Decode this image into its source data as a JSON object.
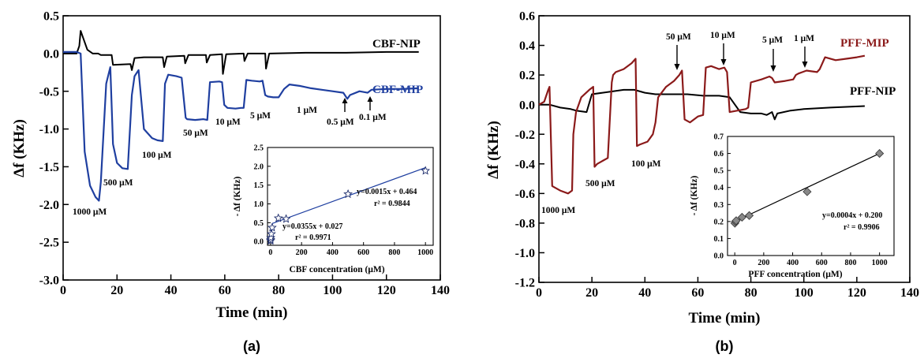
{
  "figure": {
    "panel_a_caption": "(a)",
    "panel_b_caption": "(b)"
  },
  "colors": {
    "axis": "#000000",
    "cbf_mip": "#1f3fa0",
    "cbf_nip": "#000000",
    "pff_mip": "#8b1a1a",
    "pff_nip": "#000000",
    "inset_fit_a": "#1f3fa0",
    "inset_fit_b": "#000000",
    "inset_marker_b": "#888888"
  },
  "chart_data": [
    {
      "type": "line",
      "panel": "a",
      "xlabel": "Time (min)",
      "ylabel": "Δf (KHz)",
      "xlim": [
        0,
        140
      ],
      "ylim": [
        -3.0,
        0.5
      ],
      "xticks": [
        0,
        20,
        40,
        60,
        80,
        100,
        120,
        140
      ],
      "yticks": [
        0.5,
        0.0,
        -0.5,
        -1.0,
        -1.5,
        -2.0,
        -2.5,
        -3.0
      ],
      "ytick_labels": [
        "0.5",
        "0.0",
        "-0.5",
        "-1.0",
        "-1.5",
        "-2.0",
        "-2.5",
        "-3.0"
      ],
      "series": [
        {
          "name": "CBF-MIP",
          "x": [
            0,
            5,
            6.5,
            8,
            10,
            12,
            13.3,
            14,
            16,
            17.5,
            18.5,
            20,
            22,
            24,
            25.5,
            26.5,
            28,
            30,
            33,
            35,
            37,
            37.8,
            39,
            42,
            44,
            45.5,
            46,
            49,
            52,
            53.5,
            54.5,
            58,
            59,
            59.8,
            61,
            64,
            66,
            67,
            68,
            70,
            73,
            74,
            75,
            76,
            78,
            80,
            82,
            84,
            88,
            92,
            96,
            100,
            104,
            105.5,
            106.5,
            110,
            113,
            114.5,
            120,
            126,
            132
          ],
          "y": [
            0.02,
            0.02,
            0.0,
            -1.3,
            -1.75,
            -1.9,
            -1.95,
            -1.7,
            -0.4,
            -0.18,
            -1.2,
            -1.45,
            -1.52,
            -1.53,
            -0.55,
            -0.3,
            -0.22,
            -1.0,
            -1.12,
            -1.15,
            -1.16,
            -0.4,
            -0.28,
            -0.3,
            -0.32,
            -0.85,
            -0.87,
            -0.88,
            -0.87,
            -0.88,
            -0.38,
            -0.37,
            -0.38,
            -0.68,
            -0.72,
            -0.73,
            -0.72,
            -0.72,
            -0.35,
            -0.36,
            -0.37,
            -0.36,
            -0.55,
            -0.57,
            -0.58,
            -0.58,
            -0.47,
            -0.41,
            -0.43,
            -0.46,
            -0.48,
            -0.5,
            -0.52,
            -0.6,
            -0.55,
            -0.5,
            -0.52,
            -0.48,
            -0.47,
            -0.47,
            -0.46
          ]
        },
        {
          "name": "CBF-NIP",
          "x": [
            0,
            5,
            6,
            6.5,
            7.5,
            9,
            11,
            13,
            14,
            18,
            18.5,
            25,
            25.5,
            26.5,
            30,
            37,
            37.5,
            38.5,
            45,
            45.3,
            46.5,
            53,
            53.3,
            54.5,
            59,
            59.3,
            60.5,
            67,
            67.3,
            68.5,
            75,
            75.3,
            76.5,
            90,
            105,
            120,
            132
          ],
          "y": [
            0.0,
            0.0,
            0.1,
            0.3,
            0.2,
            0.05,
            0.0,
            0.0,
            -0.02,
            -0.02,
            -0.15,
            -0.14,
            -0.22,
            -0.06,
            -0.05,
            -0.05,
            -0.18,
            -0.04,
            -0.03,
            -0.13,
            -0.02,
            -0.02,
            -0.12,
            -0.02,
            -0.01,
            -0.27,
            -0.01,
            0.0,
            -0.1,
            0.0,
            0.0,
            -0.2,
            0.0,
            0.01,
            0.01,
            0.02,
            0.02
          ]
        }
      ],
      "labels": {
        "nip": "CBF-NIP",
        "mip": "CBF-MIP",
        "c1000": "1000 μM",
        "c500": "500 μM",
        "c100": "100 μM",
        "c50": "50 μM",
        "c10": "10 μM",
        "c5": "5 μM",
        "c1": "1 μM",
        "c05": "0.5 μM",
        "c01": "0.1 μM"
      },
      "inset": {
        "type": "scatter",
        "xlabel": "CBF concentration (μM)",
        "ylabel": "- Δf (KHz)",
        "xlim": [
          -20,
          1050
        ],
        "ylim": [
          -0.1,
          2.5
        ],
        "xticks": [
          0,
          200,
          400,
          600,
          800,
          1000
        ],
        "yticks": [
          0.0,
          0.5,
          1.0,
          1.5,
          2.0,
          2.5
        ],
        "ytick_labels": [
          "0.0",
          "0.5",
          "1.0",
          "1.5",
          "2.0",
          "2.5"
        ],
        "points_x": [
          0.1,
          0.5,
          1,
          5,
          10,
          50,
          100,
          500,
          1000
        ],
        "points_y": [
          0.02,
          0.05,
          0.1,
          0.2,
          0.37,
          0.62,
          0.6,
          1.26,
          1.88
        ],
        "fit_high": {
          "slope": 0.0015,
          "intercept": 0.464,
          "x_range": [
            10,
            1000
          ]
        },
        "fit_low": {
          "slope": 0.0355,
          "intercept": 0.027,
          "x_range": [
            0,
            10
          ]
        },
        "eq_high": "y=0.0015x + 0.464",
        "r2_high": "r² = 0.9844",
        "eq_low": "y=0.0355x + 0.027",
        "r2_low": "r² = 0.9971"
      }
    },
    {
      "type": "line",
      "panel": "b",
      "xlabel": "Time (min)",
      "ylabel": "Δf (KHz)",
      "xlim": [
        0,
        140
      ],
      "ylim": [
        -1.2,
        0.6
      ],
      "xticks": [
        0,
        20,
        40,
        60,
        80,
        100,
        120,
        140
      ],
      "yticks": [
        0.6,
        0.4,
        0.2,
        0.0,
        -0.2,
        -0.4,
        -0.6,
        -0.8,
        -1.0,
        -1.2
      ],
      "ytick_labels": [
        "0.6",
        "0.4",
        "0.2",
        "0.0",
        "-0.2",
        "-0.4",
        "-0.6",
        "-0.8",
        "-1.0",
        "-1.2"
      ],
      "series": [
        {
          "name": "PFF-MIP",
          "x": [
            0,
            2,
            3.5,
            4,
            5,
            8,
            11,
            12.5,
            13,
            14,
            16,
            19,
            20.5,
            21,
            22,
            24,
            26,
            27.5,
            28,
            29,
            32,
            35,
            36.5,
            37,
            38,
            41,
            43,
            44,
            45,
            48,
            51,
            53,
            54,
            55,
            57,
            60,
            62,
            63,
            65,
            68,
            70,
            71,
            72,
            75,
            78,
            79,
            80,
            84,
            87,
            88,
            89,
            93,
            96,
            97,
            98,
            101,
            105,
            106,
            108,
            112,
            116,
            120,
            123
          ],
          "y": [
            0.0,
            0.02,
            0.1,
            0.12,
            -0.55,
            -0.58,
            -0.6,
            -0.58,
            -0.2,
            -0.05,
            0.05,
            0.1,
            0.12,
            -0.42,
            -0.4,
            -0.38,
            -0.36,
            0.15,
            0.2,
            0.22,
            0.24,
            0.28,
            0.31,
            -0.28,
            -0.27,
            -0.25,
            -0.2,
            -0.12,
            0.05,
            0.12,
            0.16,
            0.2,
            0.23,
            -0.1,
            -0.12,
            -0.08,
            -0.07,
            0.25,
            0.26,
            0.24,
            0.25,
            0.22,
            -0.05,
            -0.04,
            -0.03,
            -0.02,
            0.15,
            0.17,
            0.19,
            0.18,
            0.15,
            0.16,
            0.17,
            0.2,
            0.21,
            0.23,
            0.22,
            0.24,
            0.32,
            0.3,
            0.31,
            0.32,
            0.33
          ]
        },
        {
          "name": "PFF-NIP",
          "x": [
            0,
            4,
            8,
            12,
            14,
            18,
            20,
            24,
            28,
            32,
            36,
            40,
            44,
            50,
            56,
            62,
            68,
            72,
            76,
            80,
            84,
            86,
            88,
            89,
            90,
            95,
            100,
            110,
            123
          ],
          "y": [
            0.0,
            0.0,
            -0.02,
            -0.03,
            -0.04,
            -0.05,
            0.07,
            0.08,
            0.09,
            0.1,
            0.1,
            0.08,
            0.07,
            0.07,
            0.07,
            0.06,
            0.06,
            0.05,
            -0.05,
            -0.06,
            -0.06,
            -0.07,
            -0.05,
            -0.1,
            -0.06,
            -0.04,
            -0.03,
            -0.02,
            -0.01
          ]
        }
      ],
      "labels": {
        "nip": "PFF-NIP",
        "mip": "PFF-MIP",
        "c1000": "1000 μM",
        "c500": "500 μM",
        "c100": "100 μM",
        "c50": "50 μM",
        "c10": "10 μM",
        "c5": "5 μM",
        "c1": "1 μM"
      },
      "inset": {
        "type": "scatter",
        "xlabel": "PFF concentration (μM)",
        "ylabel": "- Δf (KHz)",
        "xlim": [
          -50,
          1100
        ],
        "ylim": [
          0.0,
          0.7
        ],
        "xticks": [
          0,
          200,
          400,
          600,
          800,
          1000
        ],
        "yticks": [
          0.0,
          0.1,
          0.2,
          0.3,
          0.4,
          0.5,
          0.6,
          0.7
        ],
        "ytick_labels": [
          "0.0",
          "0.1",
          "0.2",
          "0.3",
          "0.4",
          "0.5",
          "0.6",
          "0.7"
        ],
        "points_x": [
          1,
          5,
          10,
          50,
          100,
          500,
          1000
        ],
        "points_y": [
          0.19,
          0.2,
          0.205,
          0.225,
          0.235,
          0.375,
          0.6
        ],
        "fit": {
          "slope": 0.0004,
          "intercept": 0.2,
          "x_range": [
            0,
            1000
          ]
        },
        "eq": "y=0.0004x + 0.200",
        "r2": "r² = 0.9906"
      }
    }
  ]
}
